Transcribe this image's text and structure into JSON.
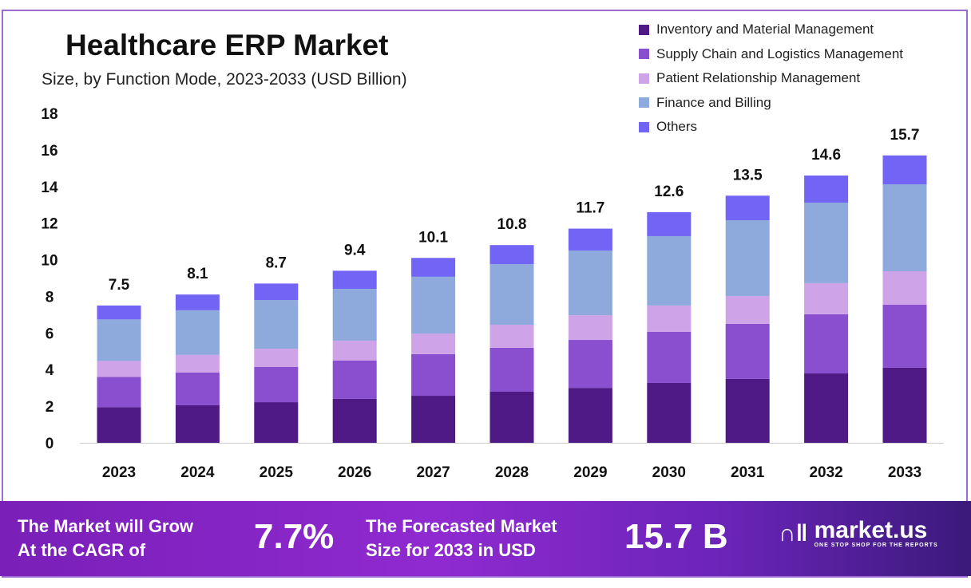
{
  "chart_data": {
    "type": "bar",
    "stacked": true,
    "title": "Healthcare ERP Market",
    "subtitle": "Size, by Function Mode, 2023-2033 (USD Billion)",
    "xlabel": "",
    "ylabel": "",
    "ylim": [
      0,
      18
    ],
    "yticks": [
      0,
      2,
      4,
      6,
      8,
      10,
      12,
      14,
      16,
      18
    ],
    "grid": false,
    "legend_position": "top-right",
    "categories": [
      "2023",
      "2024",
      "2025",
      "2026",
      "2027",
      "2028",
      "2029",
      "2030",
      "2031",
      "2032",
      "2033"
    ],
    "totals": [
      "7.5",
      "8.1",
      "8.7",
      "9.4",
      "10.1",
      "10.8",
      "11.7",
      "12.6",
      "13.5",
      "14.6",
      "15.7"
    ],
    "series": [
      {
        "name": "Inventory and Material Management",
        "color": "#4f1a86",
        "values": [
          1.95,
          2.05,
          2.22,
          2.4,
          2.57,
          2.79,
          3.0,
          3.27,
          3.49,
          3.79,
          4.1
        ]
      },
      {
        "name": "Supply Chain and Logistics Management",
        "color": "#8a4fcf",
        "values": [
          1.65,
          1.79,
          1.92,
          2.09,
          2.27,
          2.4,
          2.62,
          2.79,
          3.01,
          3.23,
          3.44
        ]
      },
      {
        "name": "Patient Relationship Management",
        "color": "#cfa3e8",
        "values": [
          0.87,
          0.96,
          1.0,
          1.09,
          1.13,
          1.26,
          1.35,
          1.44,
          1.52,
          1.7,
          1.83
        ]
      },
      {
        "name": "Finance and Billing",
        "color": "#8eaadc",
        "values": [
          2.27,
          2.44,
          2.66,
          2.83,
          3.1,
          3.31,
          3.53,
          3.79,
          4.14,
          4.4,
          4.75
        ]
      },
      {
        "name": "Others",
        "color": "#7264f5",
        "values": [
          0.76,
          0.86,
          0.9,
          0.99,
          1.03,
          1.04,
          1.2,
          1.31,
          1.34,
          1.48,
          1.58
        ]
      }
    ]
  },
  "footer": {
    "cagr_text_1": "The Market will Grow",
    "cagr_text_2": "At the CAGR of",
    "cagr_value": "7.7%",
    "forecast_text_1": "The Forecasted Market",
    "forecast_text_2": "Size for 2033 in USD",
    "forecast_value": "15.7 B",
    "logo_name": "market.us",
    "logo_tagline": "ONE STOP SHOP FOR THE REPORTS"
  }
}
